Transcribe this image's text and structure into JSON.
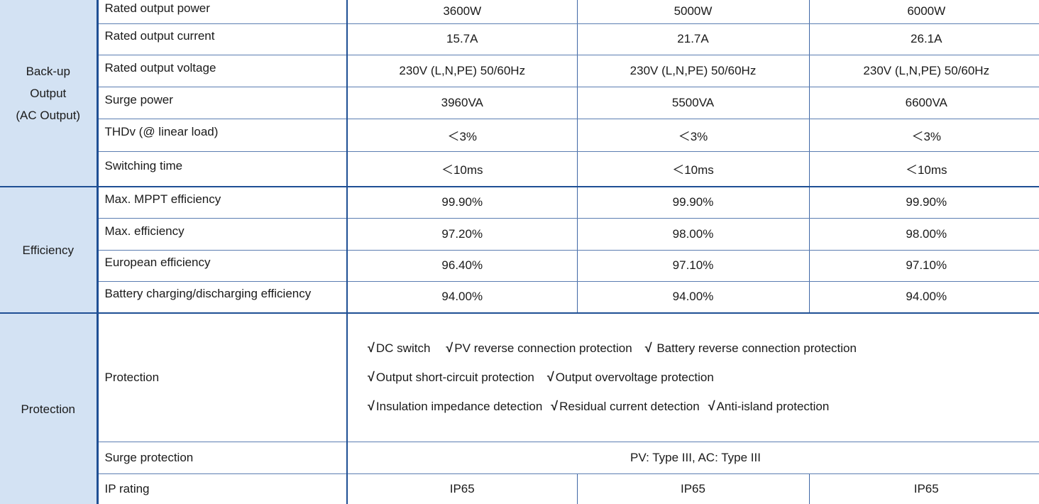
{
  "sections": {
    "backup": {
      "label_lines": [
        "Back-up",
        "Output",
        "(AC Output)"
      ],
      "rows": [
        {
          "label": "Rated output power",
          "values": [
            "3600W",
            "5000W",
            "6000W"
          ]
        },
        {
          "label": "Rated output current",
          "values": [
            "15.7A",
            "21.7A",
            "26.1A"
          ]
        },
        {
          "label": "Rated output voltage",
          "values": [
            "230V  (L,N,PE) 50/60Hz",
            "230V  (L,N,PE) 50/60Hz",
            "230V  (L,N,PE) 50/60Hz"
          ]
        },
        {
          "label": "Surge power",
          "values": [
            "3960VA",
            "5500VA",
            "6600VA"
          ]
        },
        {
          "label": "THDv (@ linear load)",
          "values": [
            "＜3%",
            "＜3%",
            "＜3%"
          ]
        },
        {
          "label": "Switching time",
          "values": [
            "＜10ms",
            "＜10ms",
            "＜10ms"
          ]
        }
      ]
    },
    "efficiency": {
      "label": "Efficiency",
      "rows": [
        {
          "label": "Max. MPPT efficiency",
          "values": [
            "99.90%",
            "99.90%",
            "99.90%"
          ]
        },
        {
          "label": "Max. efficiency",
          "values": [
            "97.20%",
            "98.00%",
            "98.00%"
          ]
        },
        {
          "label": "European efficiency",
          "values": [
            "96.40%",
            "97.10%",
            "97.10%"
          ]
        },
        {
          "label": "Battery charging/discharging efficiency",
          "values": [
            "94.00%",
            "94.00%",
            "94.00%"
          ]
        }
      ]
    },
    "protection": {
      "label": "Protection",
      "protection_row": {
        "label": "Protection",
        "check_symbol": "√",
        "lines": [
          [
            "DC switch",
            "PV reverse connection protection",
            " Battery reverse connection protection"
          ],
          [
            "Output short-circuit protection",
            "Output overvoltage protection"
          ],
          [
            "Insulation impedance detection",
            "Residual current detection",
            "Anti-island protection"
          ]
        ]
      },
      "surge_row": {
        "label": "Surge protection",
        "value": "PV: Type III, AC: Type III"
      },
      "ip_row": {
        "label": "IP rating",
        "values": [
          "IP65",
          "IP65",
          "IP65"
        ]
      }
    }
  },
  "colors": {
    "category_bg": "#d3e2f3",
    "border": "#1f4f94"
  }
}
